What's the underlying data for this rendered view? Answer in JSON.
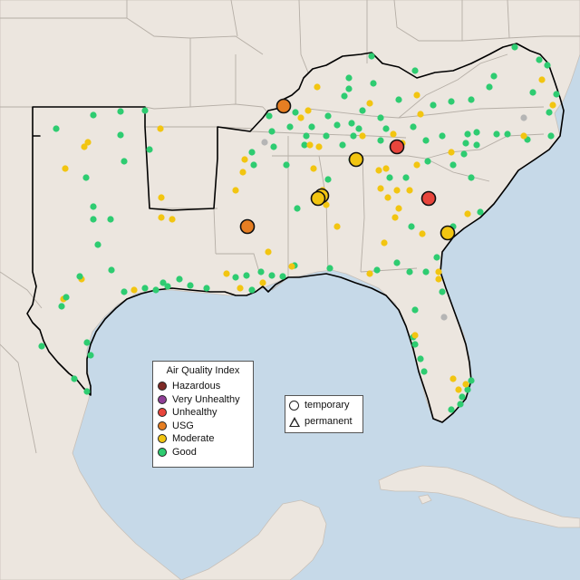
{
  "legend": {
    "title": "Air Quality Index",
    "categories": [
      {
        "label": "Hazardous",
        "color": "#7e2a26"
      },
      {
        "label": "Very Unhealthy",
        "color": "#8f3f97"
      },
      {
        "label": "Unhealthy",
        "color": "#e8453c"
      },
      {
        "label": "USG",
        "color": "#e67e22"
      },
      {
        "label": "Moderate",
        "color": "#f2c511"
      },
      {
        "label": "Good",
        "color": "#2ecc71"
      }
    ]
  },
  "type_legend": {
    "temporary": "temporary",
    "permanent": "permanent"
  },
  "colors": {
    "water": "#c6d9e8",
    "land": "#ece6df",
    "border": "#b9b2ab",
    "region_outline": "#000000",
    "no_data": "#b5b5b5"
  }
}
